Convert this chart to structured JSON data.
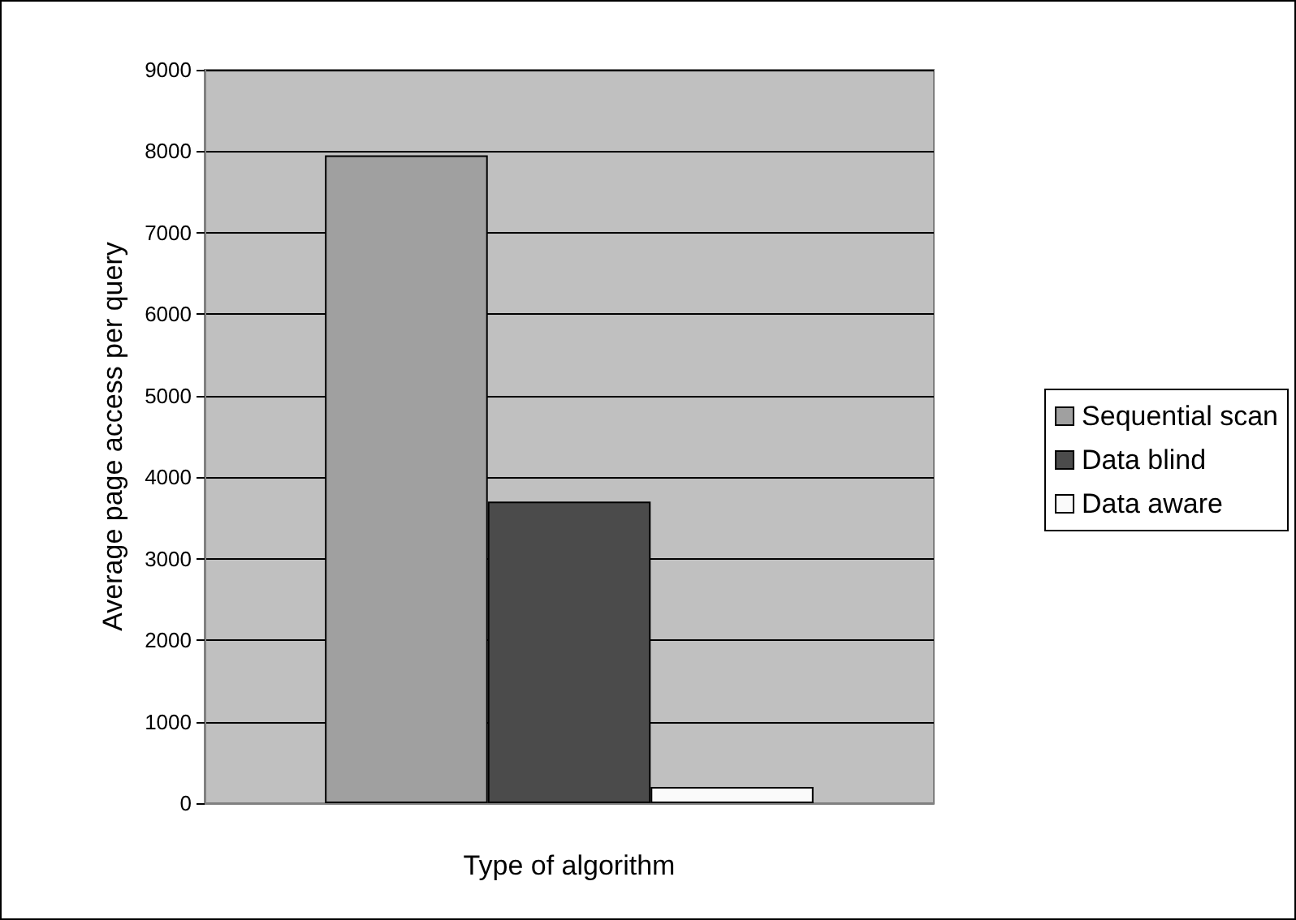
{
  "chart_data": {
    "type": "bar",
    "xlabel": "Type of algorithm",
    "ylabel": "Average page access per query",
    "categories": [
      null
    ],
    "series": [
      {
        "name": "Sequential scan",
        "color": "#a0a0a0",
        "values": [
          7950
        ]
      },
      {
        "name": "Data blind",
        "color": "#4b4b4b",
        "values": [
          3700
        ]
      },
      {
        "name": "Data aware",
        "color": "#fafafa",
        "values": [
          200
        ]
      }
    ],
    "ylim": [
      0,
      9000
    ],
    "yticks": [
      0,
      1000,
      2000,
      3000,
      4000,
      5000,
      6000,
      7000,
      8000,
      9000
    ],
    "grid": "y",
    "legend": "right"
  }
}
